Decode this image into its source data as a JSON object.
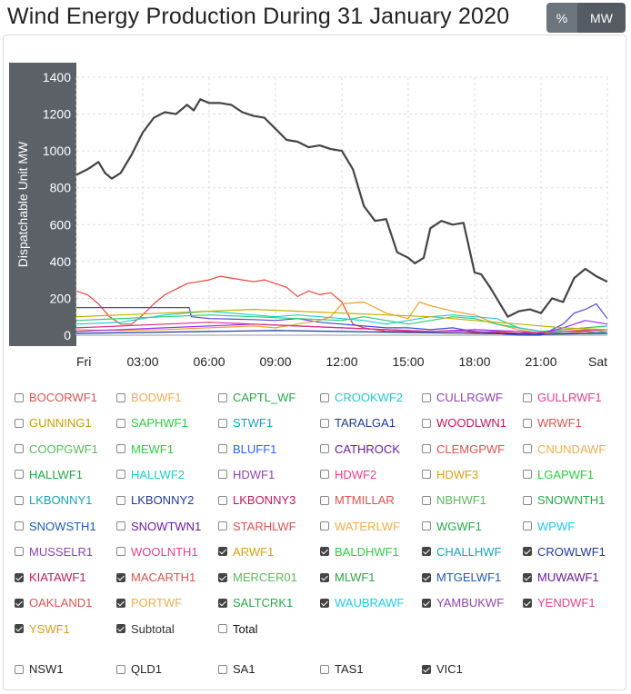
{
  "title": "Wind Energy Production During 31 January 2020",
  "toggle": {
    "pct": "%",
    "mw": "MW"
  },
  "chart_data": {
    "type": "line",
    "ylabel": "Dispatchable Unit MW",
    "xlabel": "",
    "ylim": [
      0,
      1400
    ],
    "xlim": [
      0,
      24
    ],
    "yticks": [
      0,
      200,
      400,
      600,
      800,
      1000,
      1200,
      1400
    ],
    "xticks": [
      {
        "x": 0,
        "label": "Fri"
      },
      {
        "x": 3,
        "label": "03:00"
      },
      {
        "x": 6,
        "label": "06:00"
      },
      {
        "x": 9,
        "label": "09:00"
      },
      {
        "x": 12,
        "label": "12:00"
      },
      {
        "x": 15,
        "label": "15:00"
      },
      {
        "x": 18,
        "label": "18:00"
      },
      {
        "x": 21,
        "label": "21:00"
      },
      {
        "x": 24,
        "label": "Sat"
      }
    ],
    "grid": true,
    "series": [
      {
        "color": "#444444",
        "width": 2.2,
        "x": [
          0,
          0.5,
          1,
          1.3,
          1.6,
          2,
          2.5,
          3,
          3.5,
          4,
          4.5,
          5,
          5.3,
          5.6,
          6,
          6.5,
          7,
          7.5,
          8,
          8.5,
          9,
          9.5,
          10,
          10.5,
          11,
          11.5,
          12,
          12.5,
          13,
          13.5,
          14,
          14.5,
          15,
          15.3,
          15.7,
          16,
          16.5,
          17,
          17.5,
          18,
          18.3,
          18.7,
          19,
          19.5,
          20,
          20.5,
          21,
          21.5,
          22,
          22.5,
          23,
          23.5,
          24
        ],
        "y": [
          870,
          900,
          940,
          880,
          850,
          880,
          980,
          1100,
          1180,
          1210,
          1200,
          1250,
          1220,
          1280,
          1260,
          1260,
          1250,
          1210,
          1190,
          1180,
          1120,
          1060,
          1050,
          1020,
          1030,
          1010,
          1000,
          900,
          700,
          620,
          630,
          450,
          420,
          390,
          420,
          580,
          620,
          600,
          610,
          340,
          330,
          260,
          200,
          100,
          130,
          140,
          120,
          200,
          180,
          310,
          360,
          320,
          290
        ]
      },
      {
        "color": "#e8443a",
        "width": 1.2,
        "x": [
          0,
          0.5,
          1,
          1.5,
          2,
          2.5,
          3,
          3.5,
          4,
          4.5,
          5,
          5.5,
          6,
          6.5,
          7,
          7.5,
          8,
          8.5,
          9,
          9.5,
          10,
          10.5,
          11,
          11.5,
          12,
          12.5,
          13,
          13.5,
          14,
          15,
          16,
          17,
          18,
          19,
          20,
          21,
          22,
          23,
          24
        ],
        "y": [
          240,
          220,
          170,
          100,
          60,
          60,
          110,
          170,
          220,
          250,
          280,
          290,
          300,
          320,
          310,
          300,
          290,
          300,
          280,
          260,
          210,
          240,
          220,
          230,
          180,
          60,
          40,
          30,
          20,
          20,
          20,
          25,
          15,
          20,
          10,
          15,
          10,
          20,
          10
        ]
      },
      {
        "color": "#4a4ad0",
        "width": 1.2,
        "x": [
          0,
          2,
          4,
          5.1,
          5.2,
          6,
          8,
          9,
          10,
          11,
          12,
          13,
          14,
          15,
          16,
          17,
          18,
          19,
          20,
          21,
          22,
          22.5,
          23,
          23.5,
          24
        ],
        "y": [
          150,
          150,
          150,
          150,
          100,
          90,
          85,
          80,
          90,
          70,
          60,
          50,
          40,
          40,
          30,
          40,
          20,
          10,
          0,
          0,
          60,
          120,
          140,
          170,
          90
        ]
      },
      {
        "color": "#f0a030",
        "width": 1.2,
        "x": [
          0,
          2,
          4,
          6,
          8,
          9,
          10,
          11,
          11.5,
          12,
          13,
          14,
          15,
          15.5,
          16,
          17,
          18,
          19,
          20,
          21,
          22,
          23,
          24
        ],
        "y": [
          30,
          25,
          30,
          40,
          50,
          40,
          60,
          80,
          100,
          170,
          180,
          120,
          90,
          180,
          160,
          130,
          110,
          60,
          30,
          10,
          20,
          30,
          20
        ]
      },
      {
        "color": "#2ecc71",
        "width": 1.2,
        "x": [
          0,
          2,
          4,
          6,
          8,
          10,
          12,
          13,
          14,
          15,
          16,
          17,
          18,
          19,
          20,
          21,
          22,
          23,
          24
        ],
        "y": [
          80,
          90,
          100,
          110,
          100,
          90,
          80,
          100,
          80,
          60,
          80,
          100,
          90,
          60,
          40,
          20,
          30,
          40,
          50
        ]
      },
      {
        "color": "#22cccc",
        "width": 1.2,
        "x": [
          0,
          2,
          3,
          4,
          5,
          6,
          7,
          8,
          9,
          10,
          11,
          12,
          13,
          14,
          15,
          16,
          17,
          18,
          19,
          20,
          21,
          22,
          23,
          24
        ],
        "y": [
          60,
          70,
          90,
          110,
          120,
          130,
          120,
          110,
          100,
          110,
          100,
          90,
          80,
          60,
          80,
          100,
          110,
          100,
          90,
          40,
          20,
          10,
          10,
          20
        ]
      },
      {
        "color": "#9b30ff",
        "width": 1.2,
        "x": [
          0,
          2,
          4,
          6,
          8,
          10,
          12,
          14,
          16,
          18,
          20,
          21,
          22,
          23,
          24
        ],
        "y": [
          20,
          30,
          40,
          50,
          60,
          50,
          40,
          30,
          20,
          30,
          20,
          10,
          40,
          80,
          60
        ]
      },
      {
        "color": "#d63384",
        "width": 1.2,
        "x": [
          0,
          2,
          4,
          6,
          8,
          10,
          12,
          14,
          16,
          18,
          20,
          22,
          24
        ],
        "y": [
          40,
          50,
          60,
          70,
          60,
          50,
          40,
          30,
          20,
          20,
          10,
          20,
          30
        ]
      },
      {
        "color": "#c0b000",
        "width": 1.2,
        "x": [
          0,
          2,
          4,
          6,
          8,
          10,
          12,
          14,
          16,
          18,
          20,
          22,
          24
        ],
        "y": [
          100,
          110,
          120,
          130,
          140,
          130,
          120,
          110,
          100,
          80,
          60,
          40,
          30
        ]
      },
      {
        "color": "#1a3a9a",
        "width": 1.2,
        "x": [
          0,
          3,
          6,
          9,
          12,
          15,
          18,
          21,
          24
        ],
        "y": [
          10,
          15,
          20,
          25,
          20,
          15,
          10,
          5,
          10
        ]
      }
    ]
  },
  "checkboxes": [
    {
      "label": "BOCORWF1",
      "color": "#d9534f",
      "checked": false
    },
    {
      "label": "BODWF1",
      "color": "#f0ad4e",
      "checked": false
    },
    {
      "label": "CAPTL_WF",
      "color": "#28a745",
      "checked": false
    },
    {
      "label": "CROOKWF2",
      "color": "#20c9c9",
      "checked": false
    },
    {
      "label": "CULLRGWF",
      "color": "#8e44ad",
      "checked": false
    },
    {
      "label": "GULLRWF1",
      "color": "#e83e8c",
      "checked": false
    },
    {
      "label": "GUNNING1",
      "color": "#c8a000",
      "checked": false
    },
    {
      "label": "SAPHWF1",
      "color": "#2ecc40",
      "checked": false
    },
    {
      "label": "STWF1",
      "color": "#17a2b8",
      "checked": false
    },
    {
      "label": "TARALGA1",
      "color": "#1e3799",
      "checked": false
    },
    {
      "label": "WOODLWN1",
      "color": "#c2185b",
      "checked": false
    },
    {
      "label": "WRWF1",
      "color": "#d9534f",
      "checked": false
    },
    {
      "label": "COOPGWF1",
      "color": "#5cb85c",
      "checked": false
    },
    {
      "label": "MEWF1",
      "color": "#2ecc40",
      "checked": false
    },
    {
      "label": "BLUFF1",
      "color": "#2962ff",
      "checked": false
    },
    {
      "label": "CATHROCK",
      "color": "#6a1b9a",
      "checked": false
    },
    {
      "label": "CLEMGPWF",
      "color": "#d9534f",
      "checked": false
    },
    {
      "label": "CNUNDAWF",
      "color": "#f0ad4e",
      "checked": false
    },
    {
      "label": "HALLWF1",
      "color": "#28a745",
      "checked": false
    },
    {
      "label": "HALLWF2",
      "color": "#20c9c9",
      "checked": false
    },
    {
      "label": "HDWF1",
      "color": "#8e44ad",
      "checked": false
    },
    {
      "label": "HDWF2",
      "color": "#e83e8c",
      "checked": false
    },
    {
      "label": "HDWF3",
      "color": "#d4a017",
      "checked": false
    },
    {
      "label": "LGAPWF1",
      "color": "#2ecc40",
      "checked": false
    },
    {
      "label": "LKBONNY1",
      "color": "#17a2b8",
      "checked": false
    },
    {
      "label": "LKBONNY2",
      "color": "#1e3799",
      "checked": false
    },
    {
      "label": "LKBONNY3",
      "color": "#c2185b",
      "checked": false
    },
    {
      "label": "MTMILLAR",
      "color": "#d9534f",
      "checked": false
    },
    {
      "label": "NBHWF1",
      "color": "#5cb85c",
      "checked": false
    },
    {
      "label": "SNOWNTH1",
      "color": "#28a745",
      "checked": false
    },
    {
      "label": "SNOWSTH1",
      "color": "#1e5bb0",
      "checked": false
    },
    {
      "label": "SNOWTWN1",
      "color": "#6a1b9a",
      "checked": false
    },
    {
      "label": "STARHLWF",
      "color": "#d9534f",
      "checked": false
    },
    {
      "label": "WATERLWF",
      "color": "#f0ad4e",
      "checked": false
    },
    {
      "label": "WGWF1",
      "color": "#28a745",
      "checked": false
    },
    {
      "label": "WPWF",
      "color": "#20c9e9",
      "checked": false
    },
    {
      "label": "MUSSELR1",
      "color": "#8e44ad",
      "checked": false
    },
    {
      "label": "WOOLNTH1",
      "color": "#e83e8c",
      "checked": false
    },
    {
      "label": "ARWF1",
      "color": "#d4a017",
      "checked": true
    },
    {
      "label": "BALDHWF1",
      "color": "#2ecc40",
      "checked": true
    },
    {
      "label": "CHALLHWF",
      "color": "#17a2b8",
      "checked": true
    },
    {
      "label": "CROWLWF1",
      "color": "#1e3799",
      "checked": true
    },
    {
      "label": "KIATAWF1",
      "color": "#c2185b",
      "checked": true
    },
    {
      "label": "MACARTH1",
      "color": "#d9534f",
      "checked": true
    },
    {
      "label": "MERCER01",
      "color": "#5cb85c",
      "checked": true
    },
    {
      "label": "MLWF1",
      "color": "#28a745",
      "checked": true
    },
    {
      "label": "MTGELWF1",
      "color": "#1e5bb0",
      "checked": true
    },
    {
      "label": "MUWAWF1",
      "color": "#6a1b9a",
      "checked": true
    },
    {
      "label": "OAKLAND1",
      "color": "#d9534f",
      "checked": true
    },
    {
      "label": "PORTWF",
      "color": "#f0ad4e",
      "checked": true
    },
    {
      "label": "SALTCRK1",
      "color": "#28a745",
      "checked": true
    },
    {
      "label": "WAUBRAWF",
      "color": "#20c9e9",
      "checked": true
    },
    {
      "label": "YAMBUKWF",
      "color": "#8e44ad",
      "checked": true
    },
    {
      "label": "YENDWF1",
      "color": "#e83e8c",
      "checked": true
    },
    {
      "label": "YSWF1",
      "color": "#d4a017",
      "checked": true
    },
    {
      "label": "Subtotal",
      "color": "#333333",
      "checked": true
    },
    {
      "label": "Total",
      "color": "#111111",
      "checked": false
    }
  ],
  "regions": [
    {
      "label": "NSW1",
      "checked": false
    },
    {
      "label": "QLD1",
      "checked": false
    },
    {
      "label": "SA1",
      "checked": false
    },
    {
      "label": "TAS1",
      "checked": false
    },
    {
      "label": "VIC1",
      "checked": true
    }
  ]
}
